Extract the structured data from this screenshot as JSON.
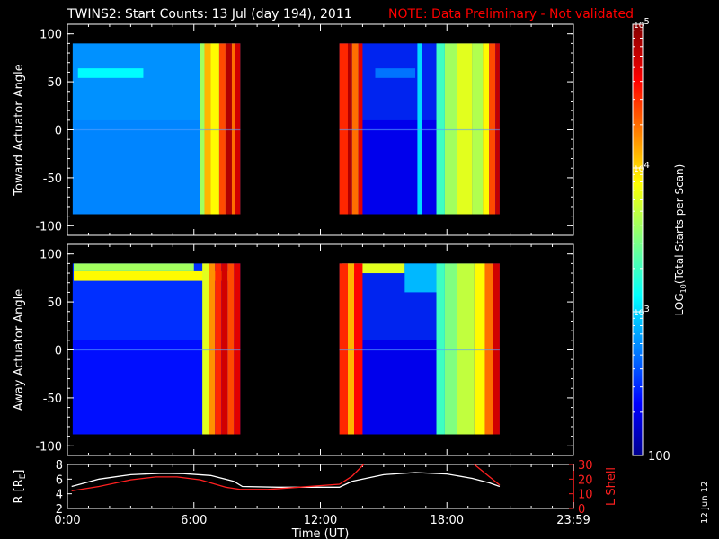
{
  "header": {
    "title": "TWINS2: Start Counts: 13 Jul (day 194), 2011",
    "note": "NOTE: Data Preliminary - Not validated"
  },
  "side_date": "12 Jun 12",
  "colors": {
    "background": "#000000",
    "axes": "#ffffff",
    "note": "#ff0000",
    "r_line": "#ffffff",
    "lshell_line": "#ff2020"
  },
  "chart_data": [
    {
      "type": "heatmap",
      "panel": "top",
      "ylabel": "Toward Actuator Angle",
      "xlim": [
        0,
        24
      ],
      "ylim": [
        -110,
        110
      ],
      "yticks": [
        100,
        50,
        0,
        -50,
        -100
      ],
      "data_y_range": [
        -88,
        90
      ],
      "segments": [
        {
          "t_start": 0.25,
          "t_end": 8.2,
          "base_log": 2.75,
          "columns": [
            {
              "t0": 6.3,
              "t1": 6.5,
              "v": 3.6
            },
            {
              "t0": 6.5,
              "t1": 6.8,
              "v": 4.1
            },
            {
              "t0": 6.8,
              "t1": 7.2,
              "v": 3.9
            },
            {
              "t0": 7.2,
              "t1": 7.5,
              "v": 4.4
            },
            {
              "t0": 7.5,
              "t1": 7.8,
              "v": 4.85
            },
            {
              "t0": 7.8,
              "t1": 7.95,
              "v": 4.3
            },
            {
              "t0": 7.95,
              "t1": 8.2,
              "v": 4.75
            }
          ],
          "bands": [
            {
              "y0": 54,
              "y1": 64,
              "t0": 0.5,
              "t1": 3.6,
              "v": 3.1
            }
          ]
        },
        {
          "t_start": 12.9,
          "t_end": 20.5,
          "base_log": 2.3,
          "columns": [
            {
              "t0": 12.9,
              "t1": 13.3,
              "v": 4.5
            },
            {
              "t0": 13.3,
              "t1": 13.5,
              "v": 4.85
            },
            {
              "t0": 13.5,
              "t1": 13.8,
              "v": 4.3
            },
            {
              "t0": 13.8,
              "t1": 14.0,
              "v": 4.7
            },
            {
              "t0": 16.6,
              "t1": 16.8,
              "v": 3.0
            },
            {
              "t0": 17.5,
              "t1": 17.9,
              "v": 3.3
            },
            {
              "t0": 17.9,
              "t1": 18.5,
              "v": 3.6
            },
            {
              "t0": 18.5,
              "t1": 19.2,
              "v": 3.8
            },
            {
              "t0": 19.2,
              "t1": 19.7,
              "v": 3.65
            },
            {
              "t0": 19.7,
              "t1": 20.0,
              "v": 3.9
            },
            {
              "t0": 20.0,
              "t1": 20.3,
              "v": 4.4
            },
            {
              "t0": 20.3,
              "t1": 20.5,
              "v": 4.8
            }
          ],
          "bands": [
            {
              "y0": 54,
              "y1": 64,
              "t0": 14.6,
              "t1": 16.5,
              "v": 2.7
            }
          ]
        }
      ]
    },
    {
      "type": "heatmap",
      "panel": "bottom",
      "ylabel": "Away Actuator Angle",
      "xlim": [
        0,
        24
      ],
      "ylim": [
        -110,
        110
      ],
      "yticks": [
        100,
        50,
        0,
        -50,
        -100
      ],
      "data_y_range": [
        -88,
        90
      ],
      "segments": [
        {
          "t_start": 0.25,
          "t_end": 8.2,
          "base_log": 2.4,
          "columns": [
            {
              "t0": 6.4,
              "t1": 6.7,
              "v": 3.8
            },
            {
              "t0": 6.7,
              "t1": 7.0,
              "v": 4.2
            },
            {
              "t0": 7.0,
              "t1": 7.3,
              "v": 4.5
            },
            {
              "t0": 7.3,
              "t1": 7.6,
              "v": 4.75
            },
            {
              "t0": 7.6,
              "t1": 7.9,
              "v": 4.4
            },
            {
              "t0": 7.9,
              "t1": 8.2,
              "v": 4.7
            }
          ],
          "bands": [
            {
              "y0": 72,
              "y1": 82,
              "t0": 0.3,
              "t1": 7.6,
              "v": 3.9
            },
            {
              "y0": 82,
              "y1": 90,
              "t0": 0.3,
              "t1": 6.0,
              "v": 3.6
            }
          ]
        },
        {
          "t_start": 12.9,
          "t_end": 20.5,
          "base_log": 2.3,
          "columns": [
            {
              "t0": 12.9,
              "t1": 13.3,
              "v": 4.5
            },
            {
              "t0": 13.3,
              "t1": 13.6,
              "v": 4.1
            },
            {
              "t0": 13.6,
              "t1": 14.0,
              "v": 4.6
            },
            {
              "t0": 17.5,
              "t1": 17.9,
              "v": 3.3
            },
            {
              "t0": 17.9,
              "t1": 18.5,
              "v": 3.5
            },
            {
              "t0": 18.5,
              "t1": 19.3,
              "v": 3.7
            },
            {
              "t0": 19.3,
              "t1": 19.8,
              "v": 3.9
            },
            {
              "t0": 19.8,
              "t1": 20.2,
              "v": 4.3
            },
            {
              "t0": 20.2,
              "t1": 20.5,
              "v": 4.75
            }
          ],
          "bands": [
            {
              "y0": 80,
              "y1": 90,
              "t0": 13.0,
              "t1": 16.0,
              "v": 3.8
            },
            {
              "y0": 60,
              "y1": 90,
              "t0": 16.0,
              "t1": 17.5,
              "v": 2.9
            }
          ]
        }
      ]
    },
    {
      "type": "line",
      "panel": "ephemeris",
      "ylabel_left": "R [R",
      "ylabel_left_sub": "E",
      "ylabel_left_end": "]",
      "ylabel_right": "L Shell",
      "xlabel": "Time (UT)",
      "xlim": [
        0,
        24
      ],
      "xticks": [
        "0:00",
        "6:00",
        "12:00",
        "18:00",
        "23:59"
      ],
      "ylim_left": [
        2,
        8
      ],
      "yticks_left": [
        2,
        4,
        6,
        8
      ],
      "ylim_right": [
        0,
        30
      ],
      "yticks_right": [
        0,
        10,
        20,
        30
      ],
      "series": [
        {
          "axis": "left",
          "x": [
            0.2,
            1.5,
            3.0,
            4.5,
            5.5,
            6.8,
            7.9,
            8.3,
            10.0,
            12.9,
            13.5,
            15.0,
            16.5,
            18.0,
            19.2,
            20.0,
            20.5
          ],
          "y": [
            5.0,
            6.0,
            6.6,
            6.8,
            6.75,
            6.5,
            5.7,
            5.0,
            4.9,
            4.9,
            5.7,
            6.6,
            6.9,
            6.7,
            6.1,
            5.5,
            5.0
          ]
        },
        {
          "axis": "right",
          "x": [
            0.2,
            1.5,
            3.0,
            4.2,
            5.2,
            6.3,
            7.5,
            8.2,
            9.5,
            11.0,
            12.9,
            13.5,
            14.05
          ],
          "y": [
            12,
            15,
            19.5,
            21.5,
            21.5,
            19.5,
            14.5,
            13,
            13,
            14.5,
            16.5,
            22,
            30
          ]
        },
        {
          "axis": "right",
          "x": [
            19.3,
            20.5
          ],
          "y": [
            30,
            16
          ]
        }
      ]
    },
    {
      "type": "heatmap",
      "panel": "colorbar",
      "label_log": "LOG",
      "label_sub": "10",
      "label_rest": "(Total Starts per Scan)",
      "range_log": [
        2,
        5
      ],
      "ticks": [
        {
          "log": 5,
          "base": "10",
          "exp": "5"
        },
        {
          "log": 4,
          "base": "10",
          "exp": "4"
        },
        {
          "log": 3,
          "base": "10",
          "exp": "3"
        },
        {
          "log": 2,
          "plain": "100"
        }
      ]
    }
  ]
}
